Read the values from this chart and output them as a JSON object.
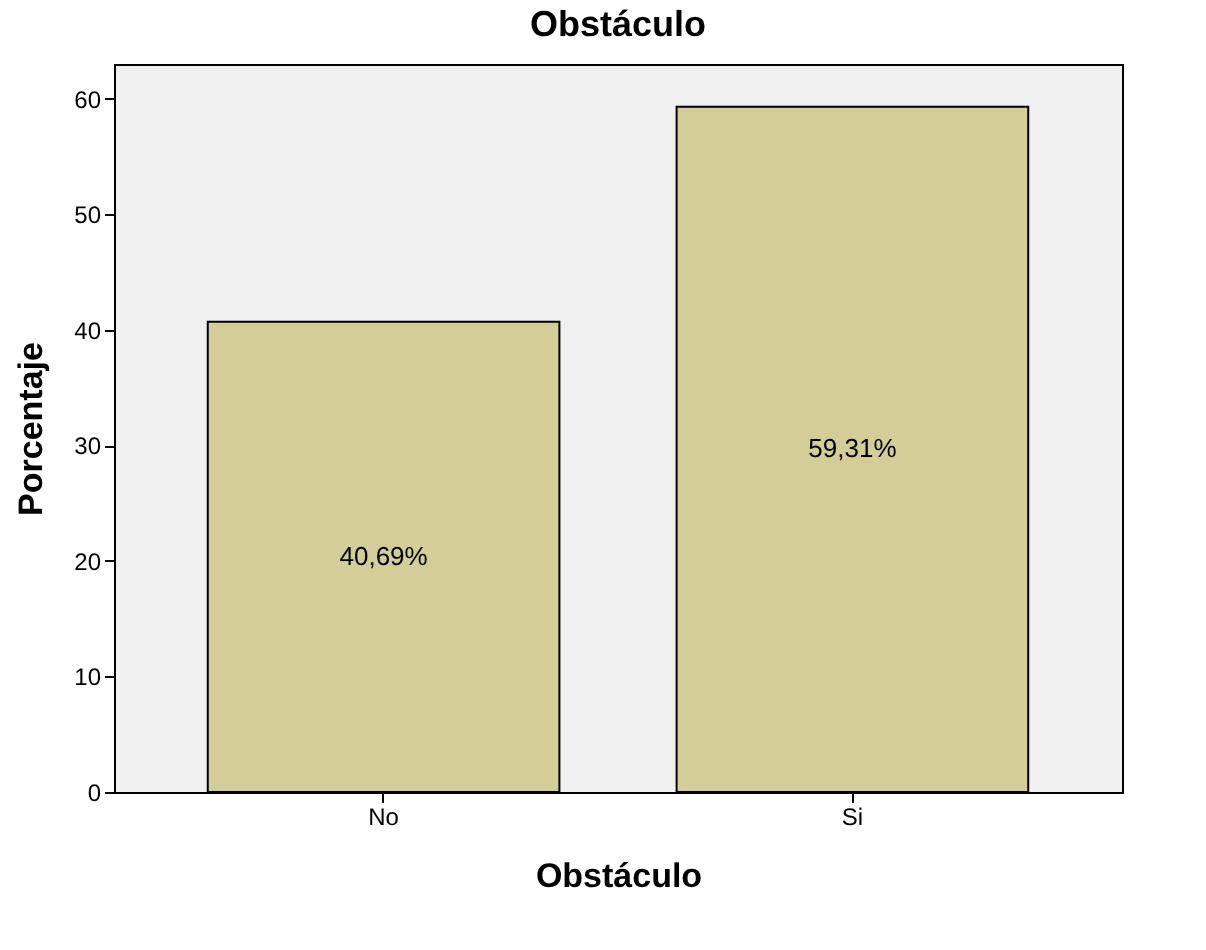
{
  "chart_data": {
    "type": "bar",
    "title": "Obstáculo",
    "xlabel": "Obstáculo",
    "ylabel": "Porcentaje",
    "categories": [
      "No",
      "Si"
    ],
    "values": [
      40.69,
      59.31
    ],
    "value_labels": [
      "40,69%",
      "59,31%"
    ],
    "color": "#d3ce98",
    "ylim": [
      0,
      63
    ],
    "yticks": [
      0,
      10,
      20,
      30,
      40,
      50,
      60
    ],
    "grid": false
  }
}
